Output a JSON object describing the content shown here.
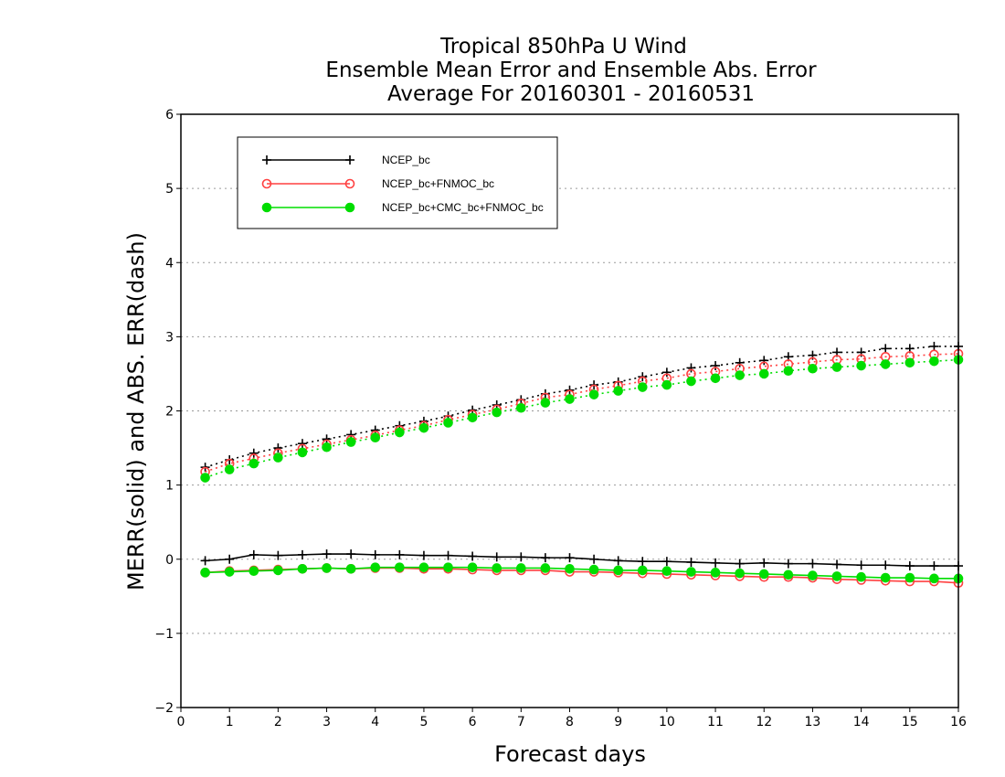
{
  "chart_data": {
    "type": "line",
    "title": [
      "Tropical 850hPa U Wind",
      "Ensemble Mean Error and Ensemble Abs. Error",
      "Average For 20160301 - 20160531"
    ],
    "xlabel": "Forecast days",
    "ylabel": "MERR(solid) and ABS. ERR(dash)",
    "xlim": [
      0,
      16
    ],
    "ylim": [
      -2,
      6
    ],
    "xticks": [
      "0",
      "1",
      "2",
      "3",
      "4",
      "5",
      "6",
      "7",
      "8",
      "9",
      "10",
      "11",
      "12",
      "13",
      "14",
      "15",
      "16"
    ],
    "yticks": [
      "−2",
      "−1",
      "0",
      "1",
      "2",
      "3",
      "4",
      "5",
      "6"
    ],
    "x": [
      0.5,
      1,
      1.5,
      2,
      2.5,
      3,
      3.5,
      4,
      4.5,
      5,
      5.5,
      6,
      6.5,
      7,
      7.5,
      8,
      8.5,
      9,
      9.5,
      10,
      10.5,
      11,
      11.5,
      12,
      12.5,
      13,
      13.5,
      14,
      14.5,
      15,
      15.5,
      16
    ],
    "grid": "horizontal dotted",
    "legend_position": "top-left",
    "series": [
      {
        "name": "NCEP_bc",
        "color": "#000000",
        "marker": "plus",
        "merr": [
          -0.02,
          0.0,
          0.06,
          0.05,
          0.06,
          0.07,
          0.07,
          0.06,
          0.06,
          0.05,
          0.05,
          0.04,
          0.03,
          0.03,
          0.02,
          0.02,
          0.0,
          -0.02,
          -0.03,
          -0.03,
          -0.04,
          -0.05,
          -0.06,
          -0.05,
          -0.06,
          -0.06,
          -0.07,
          -0.08,
          -0.08,
          -0.09,
          -0.09,
          -0.09
        ],
        "abs_err": [
          1.24,
          1.34,
          1.43,
          1.5,
          1.56,
          1.62,
          1.68,
          1.74,
          1.8,
          1.86,
          1.93,
          2.01,
          2.08,
          2.15,
          2.23,
          2.28,
          2.35,
          2.39,
          2.46,
          2.52,
          2.58,
          2.61,
          2.65,
          2.68,
          2.73,
          2.75,
          2.79,
          2.79,
          2.84,
          2.84,
          2.87,
          2.87
        ]
      },
      {
        "name": "NCEP_bc+FNMOC_bc",
        "color": "#ff4040",
        "marker": "open-circle",
        "merr": [
          -0.18,
          -0.16,
          -0.15,
          -0.14,
          -0.13,
          -0.12,
          -0.13,
          -0.12,
          -0.12,
          -0.13,
          -0.13,
          -0.14,
          -0.15,
          -0.15,
          -0.15,
          -0.17,
          -0.17,
          -0.18,
          -0.19,
          -0.2,
          -0.21,
          -0.22,
          -0.23,
          -0.24,
          -0.24,
          -0.25,
          -0.27,
          -0.28,
          -0.29,
          -0.3,
          -0.3,
          -0.32
        ],
        "abs_err": [
          1.18,
          1.29,
          1.36,
          1.43,
          1.49,
          1.55,
          1.61,
          1.67,
          1.74,
          1.8,
          1.88,
          1.95,
          2.02,
          2.1,
          2.18,
          2.22,
          2.29,
          2.34,
          2.4,
          2.44,
          2.5,
          2.53,
          2.57,
          2.6,
          2.63,
          2.66,
          2.69,
          2.7,
          2.73,
          2.74,
          2.76,
          2.77
        ]
      },
      {
        "name": "NCEP_bc+CMC_bc+FNMOC_bc",
        "color": "#00dd00",
        "marker": "filled-circle",
        "merr": [
          -0.18,
          -0.17,
          -0.16,
          -0.15,
          -0.13,
          -0.12,
          -0.13,
          -0.11,
          -0.11,
          -0.11,
          -0.11,
          -0.11,
          -0.12,
          -0.12,
          -0.12,
          -0.13,
          -0.14,
          -0.15,
          -0.15,
          -0.16,
          -0.17,
          -0.18,
          -0.19,
          -0.2,
          -0.21,
          -0.22,
          -0.23,
          -0.24,
          -0.25,
          -0.25,
          -0.26,
          -0.26
        ],
        "abs_err": [
          1.1,
          1.21,
          1.29,
          1.37,
          1.44,
          1.51,
          1.58,
          1.64,
          1.71,
          1.77,
          1.84,
          1.91,
          1.98,
          2.04,
          2.11,
          2.16,
          2.22,
          2.27,
          2.32,
          2.35,
          2.4,
          2.44,
          2.48,
          2.5,
          2.54,
          2.57,
          2.59,
          2.61,
          2.63,
          2.65,
          2.67,
          2.69
        ]
      }
    ]
  }
}
